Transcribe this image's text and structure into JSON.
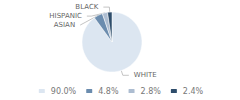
{
  "chart_data": {
    "type": "pie",
    "categories": [
      "WHITE",
      "ASIAN",
      "HISPANIC",
      "BLACK"
    ],
    "values": [
      90.0,
      4.8,
      2.8,
      2.4
    ],
    "value_labels": [
      "90.0%",
      "4.8%",
      "2.8%",
      "2.4%"
    ],
    "colors": [
      "#dce6f1",
      "#6b8cae",
      "#adbdd1",
      "#2e4d6b"
    ],
    "legend": "bottom"
  }
}
